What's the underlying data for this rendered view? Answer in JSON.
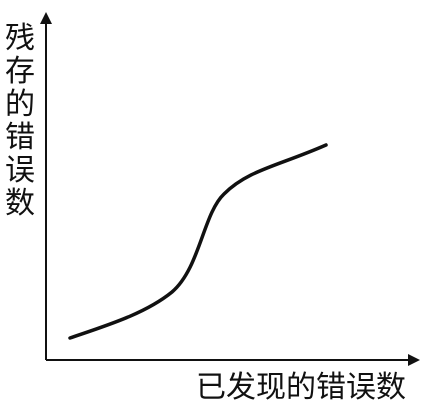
{
  "diagram": {
    "y_axis_label": "残存的错误数",
    "x_axis_label": "已发现的错误数",
    "line_color": "#111111"
  }
}
